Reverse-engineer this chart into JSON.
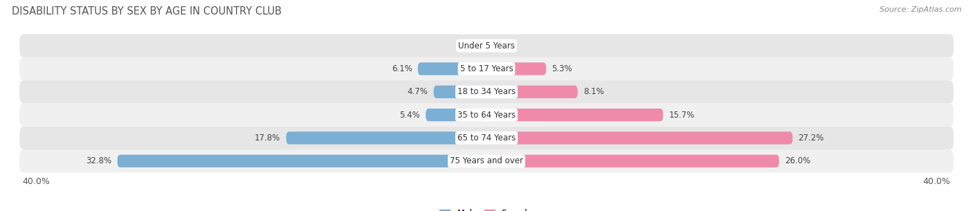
{
  "title": "DISABILITY STATUS BY SEX BY AGE IN COUNTRY CLUB",
  "source": "Source: ZipAtlas.com",
  "categories": [
    "Under 5 Years",
    "5 to 17 Years",
    "18 to 34 Years",
    "35 to 64 Years",
    "65 to 74 Years",
    "75 Years and over"
  ],
  "male_values": [
    0.0,
    6.1,
    4.7,
    5.4,
    17.8,
    32.8
  ],
  "female_values": [
    0.0,
    5.3,
    8.1,
    15.7,
    27.2,
    26.0
  ],
  "male_color": "#7bafd4",
  "female_color": "#f08aab",
  "row_color_odd": "#f0f0f0",
  "row_color_even": "#e6e6e6",
  "axis_limit": 40.0,
  "bar_height": 0.55,
  "title_color": "#555555",
  "title_fontsize": 10.5,
  "tick_label_fontsize": 9,
  "bar_label_fontsize": 8.5,
  "category_fontsize": 8.5,
  "legend_fontsize": 9,
  "source_fontsize": 8
}
